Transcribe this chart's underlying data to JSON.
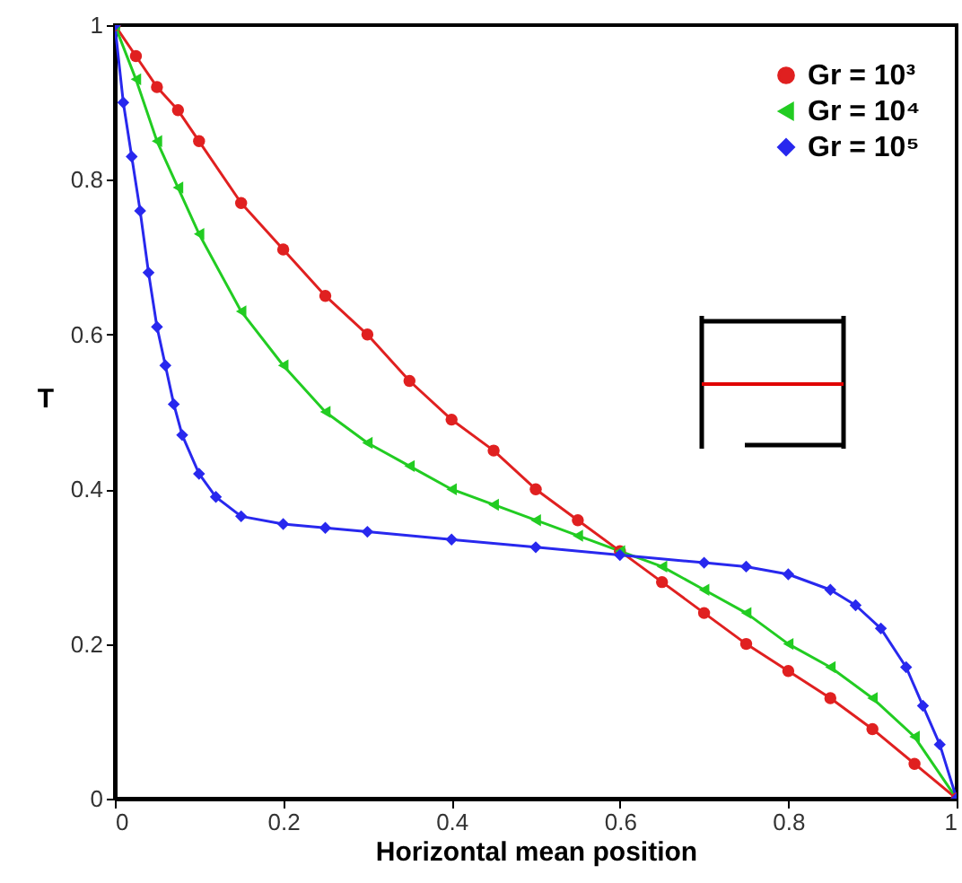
{
  "chart_data": {
    "type": "line",
    "xlabel": "Horizontal mean position",
    "ylabel": "T",
    "xlim": [
      0,
      1
    ],
    "ylim": [
      0,
      1
    ],
    "xticks": [
      0,
      0.2,
      0.4,
      0.6,
      0.8,
      1
    ],
    "yticks": [
      0,
      0.2,
      0.4,
      0.6,
      0.8,
      1
    ],
    "grid": false,
    "legend": "top right",
    "series": [
      {
        "name": "Gr = 10³",
        "color": "#e02020",
        "marker": "circle",
        "x": [
          0,
          0.025,
          0.05,
          0.075,
          0.1,
          0.15,
          0.2,
          0.25,
          0.3,
          0.35,
          0.4,
          0.45,
          0.5,
          0.55,
          0.6,
          0.65,
          0.7,
          0.75,
          0.8,
          0.85,
          0.9,
          0.95,
          1
        ],
        "values": [
          1,
          0.96,
          0.92,
          0.89,
          0.85,
          0.77,
          0.71,
          0.65,
          0.6,
          0.54,
          0.49,
          0.45,
          0.4,
          0.36,
          0.32,
          0.28,
          0.24,
          0.2,
          0.165,
          0.13,
          0.09,
          0.045,
          0
        ]
      },
      {
        "name": "Gr = 10⁴",
        "color": "#22cc22",
        "marker": "triangle",
        "x": [
          0,
          0.025,
          0.05,
          0.075,
          0.1,
          0.15,
          0.2,
          0.25,
          0.3,
          0.35,
          0.4,
          0.45,
          0.5,
          0.55,
          0.6,
          0.65,
          0.7,
          0.75,
          0.8,
          0.85,
          0.9,
          0.95,
          1
        ],
        "values": [
          1,
          0.93,
          0.85,
          0.79,
          0.73,
          0.63,
          0.56,
          0.5,
          0.46,
          0.43,
          0.4,
          0.38,
          0.36,
          0.34,
          0.32,
          0.3,
          0.27,
          0.24,
          0.2,
          0.17,
          0.13,
          0.08,
          0
        ]
      },
      {
        "name": "Gr = 10⁵",
        "color": "#2828ee",
        "marker": "diamond",
        "x": [
          0,
          0.01,
          0.02,
          0.03,
          0.04,
          0.05,
          0.06,
          0.07,
          0.08,
          0.1,
          0.12,
          0.15,
          0.2,
          0.25,
          0.3,
          0.4,
          0.5,
          0.6,
          0.7,
          0.75,
          0.8,
          0.85,
          0.88,
          0.91,
          0.94,
          0.96,
          0.98,
          1
        ],
        "values": [
          1,
          0.9,
          0.83,
          0.76,
          0.68,
          0.61,
          0.56,
          0.51,
          0.47,
          0.42,
          0.39,
          0.365,
          0.355,
          0.35,
          0.345,
          0.335,
          0.325,
          0.315,
          0.305,
          0.3,
          0.29,
          0.27,
          0.25,
          0.22,
          0.17,
          0.12,
          0.07,
          0
        ]
      }
    ]
  }
}
